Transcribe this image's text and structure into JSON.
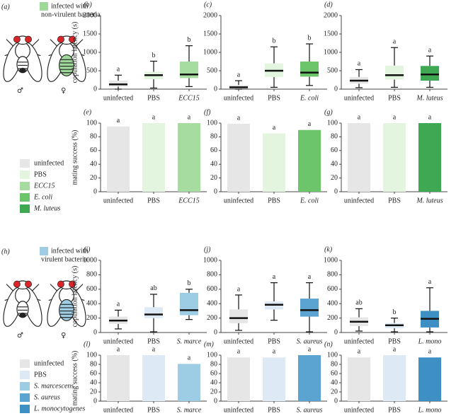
{
  "panels": {
    "a": {
      "label": "(a)",
      "text": [
        "infected with",
        "non-virulent bacteria"
      ],
      "color": "#9fd99a",
      "male": "♂",
      "female": "♀",
      "legend": [
        {
          "name": "uninfected",
          "color": "#e6e6e6"
        },
        {
          "name": "PBS",
          "color": "#e3f5df"
        },
        {
          "name": "ECC15",
          "color": "#a6dc9f"
        },
        {
          "name": "E. coli",
          "color": "#6cc56b"
        },
        {
          "name": "M. luteus",
          "color": "#3ea852"
        }
      ]
    },
    "h": {
      "label": "(h)",
      "text": [
        "infected with",
        "virulent bacteria"
      ],
      "color": "#9fcde3",
      "male": "♂",
      "female": "♀",
      "legend": [
        {
          "name": "uninfected",
          "color": "#e6e6e6"
        },
        {
          "name": "PBS",
          "color": "#dde9f5"
        },
        {
          "name": "S. marcescens",
          "color": "#9ccde4"
        },
        {
          "name": "S. aureus",
          "color": "#5ba3d0"
        },
        {
          "name": "L. monocytogenes",
          "color": "#3d8fc4"
        }
      ]
    }
  },
  "chart_data": [
    {
      "type": "box",
      "label": "(b)",
      "ylabel": "copulation latency (s)",
      "categories": [
        "uninfected",
        "PBS",
        "ECC15"
      ],
      "colors": [
        "#e6e6e6",
        "#e3f5df",
        "#a6dc9f"
      ],
      "ylim": [
        0,
        2000
      ],
      "yticks": [
        0,
        500,
        1000,
        1500,
        2000
      ],
      "boxes": [
        {
          "low": 0,
          "q1": 70,
          "median": 130,
          "q3": 230,
          "high": 380
        },
        {
          "low": 30,
          "q1": 270,
          "median": 380,
          "q3": 470,
          "high": 760
        },
        {
          "low": 70,
          "q1": 300,
          "median": 400,
          "q3": 750,
          "high": 1180
        }
      ],
      "letters": [
        "a",
        "b",
        "b"
      ]
    },
    {
      "type": "box",
      "label": "(c)",
      "categories": [
        "uninfected",
        "PBS",
        "E. coli"
      ],
      "colors": [
        "#e6e6e6",
        "#e3f5df",
        "#6cc56b"
      ],
      "ylim": [
        0,
        2000
      ],
      "yticks": [
        0,
        500,
        1000,
        1500,
        2000
      ],
      "boxes": [
        {
          "low": 0,
          "q1": 10,
          "median": 50,
          "q3": 110,
          "high": 230
        },
        {
          "low": 50,
          "q1": 330,
          "median": 500,
          "q3": 700,
          "high": 1150
        },
        {
          "low": 100,
          "q1": 340,
          "median": 450,
          "q3": 750,
          "high": 1230
        }
      ],
      "letters": [
        "a",
        "b",
        "b"
      ]
    },
    {
      "type": "box",
      "label": "(d)",
      "categories": [
        "uninfected",
        "PBS",
        "M. luteus"
      ],
      "colors": [
        "#e6e6e6",
        "#e3f5df",
        "#3ea852"
      ],
      "ylim": [
        0,
        2000
      ],
      "yticks": [
        0,
        500,
        1000,
        1500,
        2000
      ],
      "boxes": [
        {
          "low": 40,
          "q1": 150,
          "median": 230,
          "q3": 330,
          "high": 530
        },
        {
          "low": 50,
          "q1": 260,
          "median": 380,
          "q3": 640,
          "high": 1130
        },
        {
          "low": 50,
          "q1": 230,
          "median": 400,
          "q3": 630,
          "high": 900
        }
      ],
      "letters": [
        "a",
        "a",
        "a"
      ]
    },
    {
      "type": "bar",
      "label": "(e)",
      "ylabel": "mating success (%)",
      "categories": [
        "uninfected",
        "PBS",
        "ECC15"
      ],
      "colors": [
        "#e6e6e6",
        "#e3f5df",
        "#a6dc9f"
      ],
      "ylim": [
        0,
        100
      ],
      "yticks": [
        0,
        20,
        40,
        60,
        80,
        100
      ],
      "values": [
        95,
        100,
        100
      ],
      "letters": [
        "a",
        "a",
        "a"
      ]
    },
    {
      "type": "bar",
      "label": "(f)",
      "categories": [
        "uninfected",
        "PBS",
        "E. coli"
      ],
      "colors": [
        "#e6e6e6",
        "#e3f5df",
        "#6cc56b"
      ],
      "ylim": [
        0,
        100
      ],
      "yticks": [
        0,
        20,
        40,
        60,
        80,
        100
      ],
      "values": [
        99,
        85,
        90
      ],
      "letters": [
        "a",
        "a",
        "a"
      ]
    },
    {
      "type": "bar",
      "label": "(g)",
      "categories": [
        "uninfected",
        "PBS",
        "M. luteus"
      ],
      "colors": [
        "#e6e6e6",
        "#e3f5df",
        "#3ea852"
      ],
      "ylim": [
        0,
        100
      ],
      "yticks": [
        0,
        20,
        40,
        60,
        80,
        100
      ],
      "values": [
        100,
        100,
        100
      ],
      "letters": [
        "a",
        "a",
        "a"
      ]
    },
    {
      "type": "box",
      "label": "(i)",
      "ylabel": "copulation latency (s)",
      "categories": [
        "uninfected",
        "PBS",
        "S. marce"
      ],
      "colors": [
        "#e6e6e6",
        "#dde9f5",
        "#9ccde4"
      ],
      "ylim": [
        0,
        1000
      ],
      "yticks": [
        0,
        200,
        400,
        600,
        800,
        1000
      ],
      "boxes": [
        {
          "low": 50,
          "q1": 120,
          "median": 165,
          "q3": 220,
          "high": 310
        },
        {
          "low": 10,
          "q1": 200,
          "median": 250,
          "q3": 350,
          "high": 530
        },
        {
          "low": 180,
          "q1": 240,
          "median": 310,
          "q3": 550,
          "high": 600
        }
      ],
      "letters": [
        "a",
        "ab",
        "b"
      ]
    },
    {
      "type": "box",
      "label": "(j)",
      "categories": [
        "uninfected",
        "PBS",
        "S. aureus"
      ],
      "colors": [
        "#e6e6e6",
        "#dde9f5",
        "#5ba3d0"
      ],
      "ylim": [
        0,
        1000
      ],
      "yticks": [
        0,
        200,
        400,
        600,
        800,
        1000
      ],
      "boxes": [
        {
          "low": 30,
          "q1": 130,
          "median": 200,
          "q3": 320,
          "high": 520
        },
        {
          "low": 170,
          "q1": 320,
          "median": 385,
          "q3": 430,
          "high": 690
        },
        {
          "low": 10,
          "q1": 220,
          "median": 310,
          "q3": 470,
          "high": 690
        }
      ],
      "letters": [
        "a",
        "a",
        "a"
      ]
    },
    {
      "type": "box",
      "label": "(k)",
      "categories": [
        "uninfected",
        "PBS",
        "L. mono"
      ],
      "colors": [
        "#e6e6e6",
        "#dde9f5",
        "#3d8fc4"
      ],
      "ylim": [
        0,
        1000
      ],
      "yticks": [
        0,
        200,
        400,
        600,
        800,
        1000
      ],
      "boxes": [
        {
          "low": 20,
          "q1": 90,
          "median": 150,
          "q3": 210,
          "high": 330
        },
        {
          "low": 10,
          "q1": 60,
          "median": 100,
          "q3": 130,
          "high": 200
        },
        {
          "low": 10,
          "q1": 70,
          "median": 190,
          "q3": 300,
          "high": 620
        }
      ],
      "letters": [
        "ab",
        "b",
        "a"
      ]
    },
    {
      "type": "bar",
      "label": "(l)",
      "ylabel": "mating success (%)",
      "categories": [
        "uninfected",
        "PBS",
        "S. marce"
      ],
      "colors": [
        "#e6e6e6",
        "#dde9f5",
        "#9ccde4"
      ],
      "ylim": [
        0,
        100
      ],
      "yticks": [
        0,
        20,
        40,
        60,
        80,
        100
      ],
      "values": [
        100,
        100,
        81
      ],
      "letters": [
        "a",
        "a",
        "a"
      ]
    },
    {
      "type": "bar",
      "label": "(m)",
      "categories": [
        "uninfected",
        "PBS",
        "S. aureus"
      ],
      "colors": [
        "#e6e6e6",
        "#dde9f5",
        "#5ba3d0"
      ],
      "ylim": [
        0,
        100
      ],
      "yticks": [
        0,
        20,
        40,
        60,
        80,
        100
      ],
      "values": [
        95,
        95,
        100
      ],
      "letters": [
        "a",
        "a",
        "a"
      ]
    },
    {
      "type": "bar",
      "label": "(n)",
      "categories": [
        "uninfected",
        "PBS",
        "L. mono"
      ],
      "colors": [
        "#e6e6e6",
        "#dde9f5",
        "#3d8fc4"
      ],
      "ylim": [
        0,
        100
      ],
      "yticks": [
        0,
        20,
        40,
        60,
        80,
        100
      ],
      "values": [
        95,
        100,
        95
      ],
      "letters": [
        "a",
        "a",
        "a"
      ]
    }
  ]
}
